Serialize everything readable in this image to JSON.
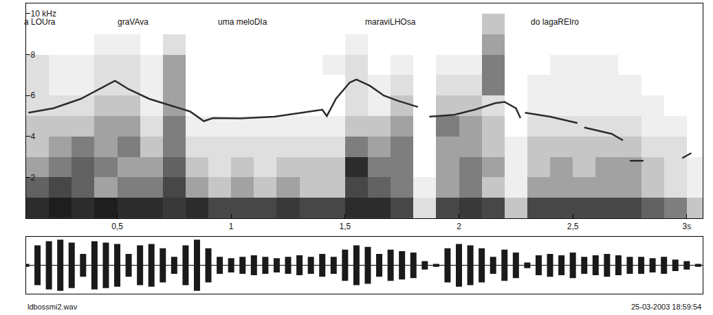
{
  "chart_data": [
    {
      "type": "heatmap",
      "grid": false,
      "xlim": [
        0.1,
        3.07
      ],
      "xticks": [
        {
          "value": 0.5,
          "label": "0,5"
        },
        1,
        {
          "value": 1.5,
          "label": "1,5"
        },
        2,
        {
          "value": 2.5,
          "label": "2,5"
        },
        {
          "value": 3,
          "label": "3s"
        }
      ],
      "ylim": [
        0,
        10.5
      ],
      "yticks": [
        2,
        4,
        6,
        8,
        {
          "value": 10,
          "label": "10 kHz"
        }
      ],
      "x": [
        0.15,
        0.25,
        0.35,
        0.45,
        0.55,
        0.65,
        0.75,
        0.85,
        0.95,
        1.05,
        1.15,
        1.25,
        1.35,
        1.45,
        1.55,
        1.65,
        1.75,
        1.85,
        1.95,
        2.05,
        2.15,
        2.25,
        2.35,
        2.45,
        2.55,
        2.65,
        2.75,
        2.85,
        2.95,
        3.05
      ],
      "y": [
        0.5,
        1.5,
        2.5,
        3.5,
        4.5,
        5.5,
        6.5,
        7.5,
        8.5,
        9.5
      ],
      "cells": [
        [
          0.9,
          0.95,
          0.9,
          0.95,
          0.9,
          0.9,
          0.85,
          0.9,
          0.8,
          0.8,
          0.8,
          0.85,
          0.8,
          0.8,
          0.9,
          0.9,
          0.8,
          0.3,
          0.8,
          0.85,
          0.8,
          0.4,
          0.8,
          0.8,
          0.8,
          0.8,
          0.8,
          0.7,
          0.6,
          0.4
        ],
        [
          0.7,
          0.8,
          0.7,
          0.5,
          0.6,
          0.6,
          0.8,
          0.5,
          0.4,
          0.5,
          0.4,
          0.5,
          0.4,
          0.4,
          0.8,
          0.7,
          0.6,
          0.2,
          0.5,
          0.6,
          0.4,
          0.2,
          0.5,
          0.5,
          0.5,
          0.5,
          0.5,
          0.4,
          0.3,
          0.2
        ],
        [
          0.5,
          0.6,
          0.7,
          0.6,
          0.5,
          0.5,
          0.7,
          0.4,
          0.3,
          0.4,
          0.3,
          0.4,
          0.4,
          0.4,
          0.9,
          0.6,
          0.6,
          0.1,
          0.5,
          0.6,
          0.5,
          0.2,
          0.4,
          0.5,
          0.4,
          0.5,
          0.5,
          0.4,
          0.3,
          0.2
        ],
        [
          0.4,
          0.5,
          0.6,
          0.5,
          0.6,
          0.4,
          0.6,
          0.3,
          0.3,
          0.3,
          0.3,
          0.3,
          0.3,
          0.3,
          0.6,
          0.5,
          0.6,
          0.1,
          0.5,
          0.5,
          0.4,
          0.2,
          0.4,
          0.4,
          0.4,
          0.4,
          0.4,
          0.3,
          0.3,
          0.1
        ],
        [
          0.4,
          0.4,
          0.4,
          0.5,
          0.5,
          0.3,
          0.6,
          0.2,
          0.2,
          0.2,
          0.2,
          0.2,
          0.2,
          0.2,
          0.4,
          0.4,
          0.5,
          0.1,
          0.6,
          0.5,
          0.4,
          0.1,
          0.3,
          0.3,
          0.3,
          0.3,
          0.3,
          0.2,
          0.2,
          0.1
        ],
        [
          0.3,
          0.3,
          0.3,
          0.4,
          0.4,
          0.2,
          0.5,
          0.1,
          0.1,
          0.1,
          0.1,
          0.1,
          0.1,
          0.1,
          0.3,
          0.2,
          0.4,
          0.1,
          0.4,
          0.4,
          0.3,
          0.1,
          0.2,
          0.2,
          0.2,
          0.2,
          0.2,
          0.2,
          0.1,
          0.1
        ],
        [
          0.3,
          0.2,
          0.2,
          0.3,
          0.3,
          0.2,
          0.5,
          0.1,
          0.1,
          0.1,
          0.1,
          0.1,
          0.1,
          0.1,
          0.3,
          0.2,
          0.3,
          0.1,
          0.3,
          0.3,
          0.6,
          0.1,
          0.2,
          0.2,
          0.2,
          0.2,
          0.2,
          0.1,
          0.1,
          0.1
        ],
        [
          0.3,
          0.2,
          0.2,
          0.3,
          0.3,
          0.2,
          0.5,
          0.1,
          0.1,
          0.1,
          0.1,
          0.1,
          0.1,
          0.2,
          0.3,
          0.1,
          0.2,
          0.1,
          0.2,
          0.2,
          0.6,
          0.1,
          0.1,
          0.2,
          0.2,
          0.2,
          0.1,
          0.1,
          0.1,
          0.1
        ],
        [
          0.1,
          0.1,
          0.1,
          0.2,
          0.2,
          0.1,
          0.3,
          0.1,
          0.1,
          0.1,
          0.1,
          0.1,
          0.1,
          0.1,
          0.2,
          0.1,
          0.1,
          0.1,
          0.1,
          0.1,
          0.5,
          0.1,
          0.1,
          0.1,
          0.1,
          0.1,
          0.1,
          0.1,
          0.1,
          0.1
        ],
        [
          0.1,
          0.1,
          0.1,
          0.1,
          0.1,
          0.1,
          0.1,
          0.1,
          0.1,
          0.1,
          0.1,
          0.1,
          0.1,
          0.1,
          0.1,
          0.1,
          0.1,
          0.1,
          0.1,
          0.1,
          0.4,
          0.1,
          0.1,
          0.1,
          0.1,
          0.1,
          0.1,
          0.1,
          0.1,
          0.1
        ]
      ],
      "series": [
        {
          "type": "line",
          "color": "#2b2b2b",
          "line_style": "solid",
          "x": [
            0.11,
            0.22,
            0.34,
            0.43,
            0.49,
            0.55,
            0.64,
            0.73,
            0.82,
            0.88,
            0.92,
            1.04,
            1.19,
            1.31,
            1.4,
            1.42,
            1.46,
            1.52,
            1.55,
            1.61,
            1.67,
            1.73,
            1.79,
            1.82,
            1.845,
            1.87,
            1.98,
            2.07,
            2.16,
            2.2,
            2.25,
            2.27,
            2.28,
            2.29,
            2.4,
            2.52,
            2.535,
            2.55,
            2.67,
            2.72,
            2.735,
            2.75,
            2.81,
            2.85,
            2.98,
            3.02
          ],
          "values": [
            5.16,
            5.38,
            5.84,
            6.38,
            6.72,
            6.31,
            5.84,
            5.53,
            5.22,
            4.75,
            4.9,
            4.88,
            4.97,
            5.16,
            5.31,
            5.0,
            5.84,
            6.63,
            6.78,
            6.47,
            6.0,
            5.75,
            5.53,
            5.44,
            null,
            4.97,
            5.06,
            5.31,
            5.63,
            5.69,
            5.38,
            4.9,
            null,
            5.16,
            4.97,
            4.66,
            null,
            4.44,
            4.13,
            3.81,
            null,
            2.81,
            2.81,
            null,
            2.94,
            3.19
          ]
        }
      ],
      "annotations": [
        {
          "text": "a LOUra",
          "x": 0.16,
          "y": 9.6
        },
        {
          "text": "graVAva",
          "x": 0.57,
          "y": 9.6
        },
        {
          "text": "uma meloDIa",
          "x": 1.05,
          "y": 9.6
        },
        {
          "text": "maraviLHOsa",
          "x": 1.7,
          "y": 9.6
        },
        {
          "text": "do lagaREIro",
          "x": 2.42,
          "y": 9.6
        }
      ]
    },
    {
      "type": "waveform",
      "tick_labels": false,
      "grid": false,
      "color": "#1a1a1a",
      "xlim": [
        0.1,
        3.07
      ],
      "ylim": [
        -1,
        1
      ],
      "x": [
        0.1,
        0.15,
        0.2,
        0.25,
        0.3,
        0.35,
        0.4,
        0.45,
        0.5,
        0.55,
        0.6,
        0.65,
        0.7,
        0.75,
        0.8,
        0.85,
        0.9,
        0.95,
        1.0,
        1.05,
        1.1,
        1.15,
        1.2,
        1.25,
        1.3,
        1.35,
        1.4,
        1.45,
        1.5,
        1.55,
        1.6,
        1.65,
        1.7,
        1.75,
        1.8,
        1.85,
        1.9,
        1.95,
        2.0,
        2.05,
        2.1,
        2.15,
        2.2,
        2.25,
        2.3,
        2.35,
        2.4,
        2.45,
        2.5,
        2.55,
        2.6,
        2.65,
        2.7,
        2.75,
        2.8,
        2.85,
        2.9,
        2.95,
        3.0,
        3.05
      ],
      "values": [
        0.05,
        0.7,
        0.85,
        0.9,
        0.8,
        0.4,
        0.85,
        0.8,
        0.75,
        0.4,
        0.7,
        0.75,
        0.6,
        0.3,
        0.7,
        0.9,
        0.6,
        0.3,
        0.25,
        0.3,
        0.35,
        0.3,
        0.25,
        0.3,
        0.35,
        0.3,
        0.4,
        0.3,
        0.55,
        0.7,
        0.65,
        0.4,
        0.55,
        0.5,
        0.45,
        0.15,
        0.05,
        0.6,
        0.75,
        0.7,
        0.6,
        0.3,
        0.55,
        0.45,
        0.1,
        0.35,
        0.4,
        0.35,
        0.45,
        0.3,
        0.35,
        0.4,
        0.35,
        0.3,
        0.3,
        0.25,
        0.3,
        0.2,
        0.15,
        0.05
      ]
    }
  ],
  "footer": {
    "left": "ldbossmi2.wav",
    "right": "25-03-2003 18:59:54"
  }
}
